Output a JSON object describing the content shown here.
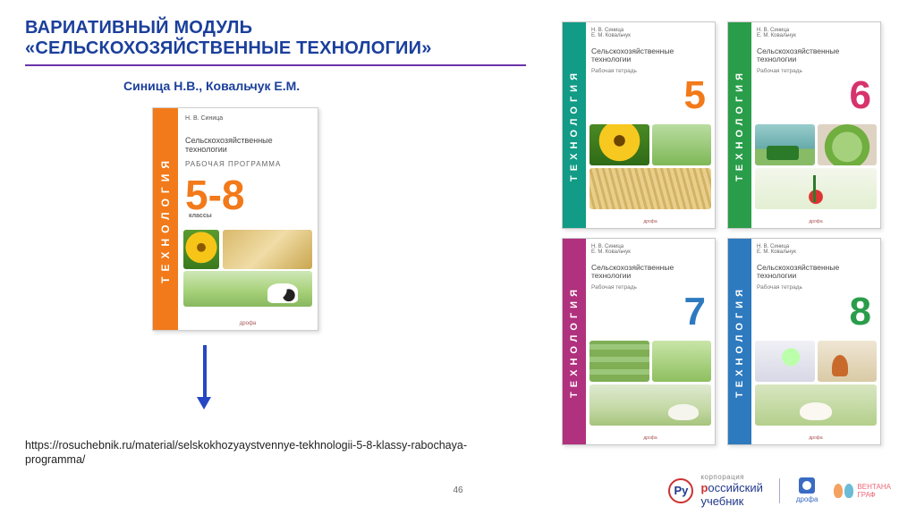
{
  "colors": {
    "title": "#1b3f9c",
    "rule": "#6a33aa",
    "authors": "#1b3f9c",
    "arrow": "#2646c4",
    "url_text": "#222222",
    "pagenum": "#666666"
  },
  "title": {
    "line1": "ВАРИАТИВНЫЙ МОДУЛЬ",
    "line2": "«СЕЛЬСКОХОЗЯЙСТВЕННЫЕ ТЕХНОЛОГИИ»"
  },
  "authors": "Синица Н.В., Ковальчук Е.М.",
  "program_cover": {
    "spine_color": "#f27a1a",
    "spine_text": "ТЕХНОЛОГИЯ",
    "author": "Н. В. Синица",
    "series_l1": "Сельскохозяйственные",
    "series_l2": "технологии",
    "subtitle": "РАБОЧАЯ  ПРОГРАММА",
    "grade": "5-8",
    "grade_label": "классы",
    "grade_color": "#f27a1a",
    "publisher": "дрофа"
  },
  "workbooks": [
    {
      "spine_color": "#129b86",
      "num_color": "#f27a1a",
      "spine_text": "ТЕХНОЛОГИЯ",
      "auth": "Н. В. Синица\nЕ. М. Ковальчук",
      "series_l1": "Сельскохозяйственные",
      "series_l2": "технологии",
      "sub": "Рабочая тетрадь",
      "num": "5",
      "publisher": "дрофа",
      "tiles": [
        "t-sunflower",
        "t-field",
        "t-wheat2"
      ]
    },
    {
      "spine_color": "#2a9d4a",
      "num_color": "#d6336c",
      "spine_text": "ТЕХНОЛОГИЯ",
      "auth": "Н. В. Синица\nЕ. М. Ковальчук",
      "series_l1": "Сельскохозяйственные",
      "series_l2": "технологии",
      "sub": "Рабочая тетрадь",
      "num": "6",
      "publisher": "дрофа",
      "tiles": [
        "t-tractor",
        "t-cabbage",
        "t-plant"
      ]
    },
    {
      "spine_color": "#b0317e",
      "num_color": "#2d7abf",
      "spine_text": "ТЕХНОЛОГИЯ",
      "auth": "Н. В. Синица\nЕ. М. Ковальчук",
      "series_l1": "Сельскохозяйственные",
      "series_l2": "технологии",
      "sub": "Рабочая тетрадь",
      "num": "7",
      "publisher": "дрофа",
      "tiles": [
        "t-rows",
        "t-green",
        "t-sheepwide"
      ]
    },
    {
      "spine_color": "#2d7abf",
      "num_color": "#2a9d4a",
      "spine_text": "ТЕХНОЛОГИЯ",
      "auth": "Н. В. Синица\nЕ. М. Ковальчук",
      "series_l1": "Сельскохозяйственные",
      "series_l2": "технологии",
      "sub": "Рабочая тетрадь",
      "num": "8",
      "publisher": "дрофа",
      "tiles": [
        "t-scope",
        "t-mush",
        "t-sheep"
      ]
    }
  ],
  "url": "https://rosuchebnik.ru/material/selskokhozyaystvennye-tekhnologii-5-8-klassy-rabochaya-programma/",
  "page_number": "46",
  "footer_logos": {
    "ru_badge": "Ру",
    "ru_small": "корпорация",
    "ru_name_cap": "р",
    "ru_name_rest_1": "оссийский",
    "ru_name_rest_2": "учебник",
    "drofa": "дрофа",
    "ventana_l1": "ВЕНТАНА",
    "ventana_l2": "ГРАФ"
  }
}
